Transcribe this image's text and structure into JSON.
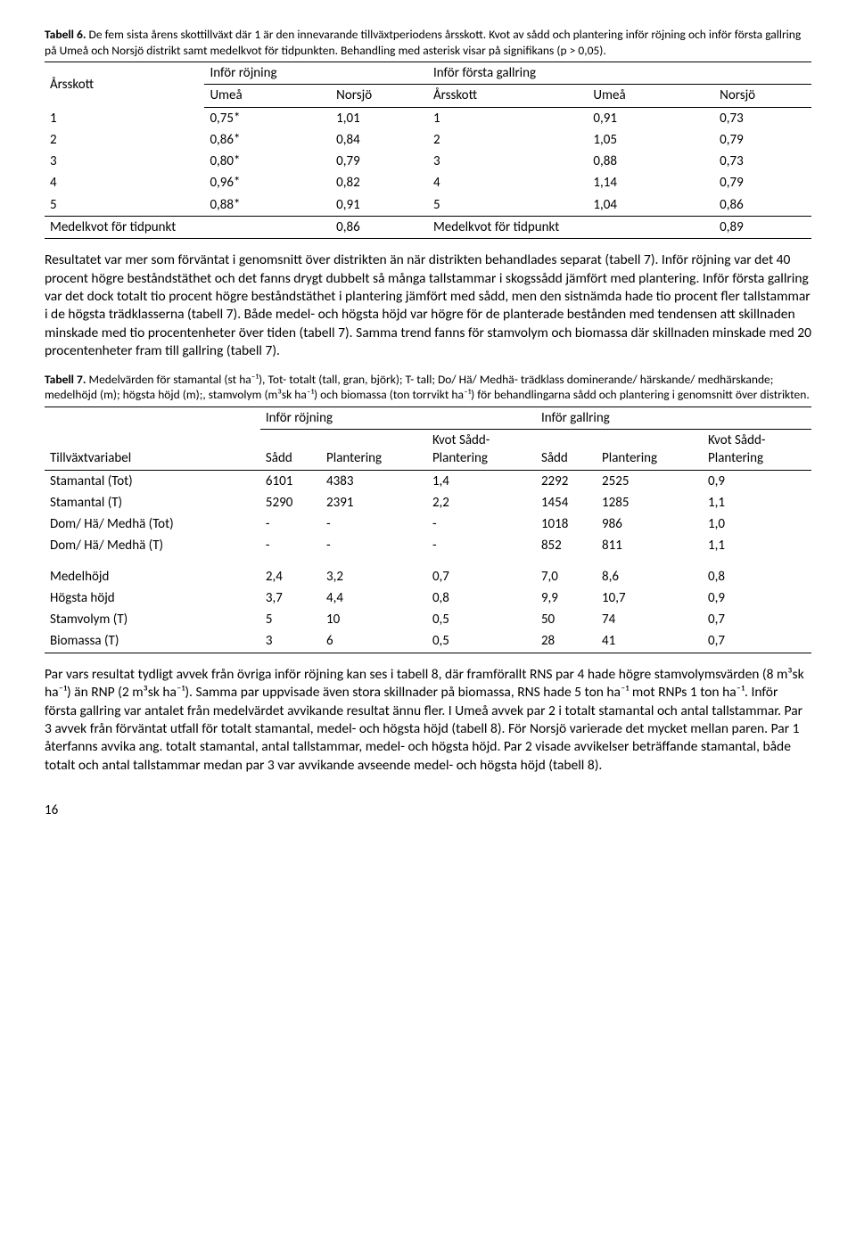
{
  "table6": {
    "caption_bold": "Tabell 6.",
    "caption_rest": " De fem sista årens skottillväxt där 1 är den innevarande tillväxtperiodens årsskott. Kvot av sådd och plantering inför röjning och inför första gallring på Umeå och Norsjö distrikt samt medelkvot för tidpunkten. Behandling med asterisk visar på signifikans (p > 0,05).",
    "col_left_group": "Inför röjning",
    "col_right_group": "Inför första gallring",
    "col_arsskott": "Årsskott",
    "col_umea": "Umeå",
    "col_norsjo": "Norsjö",
    "rows": [
      [
        "1",
        "0,75*",
        "1,01",
        "1",
        "0,91",
        "0,73"
      ],
      [
        "2",
        "0,86*",
        "0,84",
        "2",
        "1,05",
        "0,79"
      ],
      [
        "3",
        "0,80*",
        "0,79",
        "3",
        "0,88",
        "0,73"
      ],
      [
        "4",
        "0,96*",
        "0,82",
        "4",
        "1,14",
        "0,79"
      ],
      [
        "5",
        "0,88*",
        "0,91",
        "5",
        "1,04",
        "0,86"
      ]
    ],
    "footer_left_label": "Medelkvot för tidpunkt",
    "footer_left_val": "0,86",
    "footer_right_label": "Medelkvot för tidpunkt",
    "footer_right_val": "0,89"
  },
  "para1": "Resultatet var mer som förväntat i genomsnitt över distrikten än när distrikten behandlades separat (tabell 7). Inför röjning var det 40 procent högre beståndstäthet och det fanns drygt dubbelt så många tallstammar i skogssådd jämfört med plantering. Inför första gallring var det dock totalt tio procent högre beståndstäthet i plantering jämfört med sådd, men den sistnämda hade tio procent fler tallstammar i de högsta trädklasserna (tabell 7). Både medel- och högsta höjd var högre för de planterade bestånden med tendensen att skillnaden minskade med tio procentenheter över tiden (tabell 7). Samma trend fanns för stamvolym och biomassa där skillnaden minskade med 20 procentenheter fram till gallring (tabell 7).",
  "table7": {
    "caption_bold": "Tabell 7.",
    "caption_rest": " Medelvärden för stamantal (st ha⁻¹), Tot- totalt (tall, gran, björk); T- tall; Do/ Hä/ Medhä- trädklass dominerande/ härskande/ medhärskande; medelhöjd (m); högsta höjd (m);, stamvolym (m³sk ha⁻¹) och biomassa (ton torrvikt ha⁻¹)  för behandlingarna sådd och plantering i genomsnitt över distrikten.",
    "h_rojning": "Inför röjning",
    "h_gallring": "Inför gallring",
    "h_var": "Tillväxtvariabel",
    "h_sadd": "Sådd",
    "h_plant": "Plantering",
    "h_kvot": "Kvot Sådd-Plantering",
    "rows_block1": [
      [
        "Stamantal (Tot)",
        "6101",
        "4383",
        "1,4",
        "2292",
        "2525",
        "0,9"
      ],
      [
        "Stamantal (T)",
        "5290",
        "2391",
        "2,2",
        "1454",
        "1285",
        "1,1"
      ],
      [
        "Dom/ Hä/ Medhä (Tot)",
        "-",
        "-",
        "-",
        "1018",
        "986",
        "1,0"
      ],
      [
        "Dom/ Hä/ Medhä (T)",
        "-",
        "-",
        "-",
        "852",
        "811",
        "1,1"
      ]
    ],
    "rows_block2": [
      [
        "Medelhöjd",
        "2,4",
        "3,2",
        "0,7",
        "7,0",
        "8,6",
        "0,8"
      ],
      [
        "Högsta höjd",
        "3,7",
        "4,4",
        "0,8",
        "9,9",
        "10,7",
        "0,9"
      ],
      [
        "Stamvolym (T)",
        "5",
        "10",
        "0,5",
        "50",
        "74",
        "0,7"
      ],
      [
        "Biomassa (T)",
        "3",
        "6",
        "0,5",
        "28",
        "41",
        "0,7"
      ]
    ]
  },
  "para2": "Par vars resultat tydligt avvek från övriga inför röjning kan ses i tabell 8, där framförallt RNS par 4 hade högre stamvolymsvärden (8 m³sk ha⁻¹) än RNP (2 m³sk ha⁻¹). Samma par uppvisade även stora skillnader på biomassa, RNS hade 5 ton ha⁻¹ mot RNPs 1 ton ha⁻¹. Inför första gallring var antalet från medelvärdet avvikande resultat ännu fler. I Umeå avvek par 2 i totalt stamantal och antal tallstammar. Par 3 avvek från förväntat utfall för totalt stamantal, medel- och högsta höjd (tabell 8). För Norsjö varierade det mycket mellan paren. Par 1 återfanns avvika ang. totalt stamantal, antal tallstammar, medel- och högsta höjd. Par 2 visade avvikelser beträffande stamantal, både totalt och antal tallstammar medan par 3 var avvikande avseende medel- och högsta höjd (tabell 8).",
  "pagenum": "16"
}
